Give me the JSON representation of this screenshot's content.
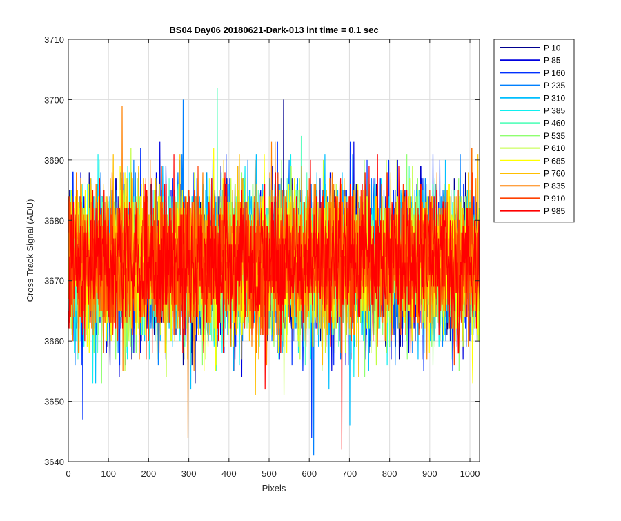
{
  "chart_data": {
    "type": "line",
    "title": "BS04 Day06 20180621-Dark-013 int time = 0.1 sec",
    "xlabel": "Pixels",
    "ylabel": "Cross Track Signal (ADU)",
    "xlim": [
      0,
      1024
    ],
    "ylim": [
      3640,
      3710
    ],
    "xticks": [
      0,
      100,
      200,
      300,
      400,
      500,
      600,
      700,
      800,
      900,
      1000
    ],
    "yticks": [
      3640,
      3650,
      3660,
      3670,
      3680,
      3690,
      3700,
      3710
    ],
    "grid": true,
    "legend_position": "outside-top-right",
    "n_points_per_series": 1024,
    "series_note": "Dark-frame noise traces; each series fluctuates around ~3673 ADU with visible spread roughly 3656-3691 and occasional spikes.",
    "series": [
      {
        "name": "P 10",
        "color": "#00008f",
        "mean": 3673,
        "std": 6.2
      },
      {
        "name": "P 85",
        "color": "#0000df",
        "mean": 3673,
        "std": 6.4
      },
      {
        "name": "P 160",
        "color": "#0030ff",
        "mean": 3673,
        "std": 6.3
      },
      {
        "name": "P 235",
        "color": "#0080ff",
        "mean": 3673,
        "std": 6.2
      },
      {
        "name": "P 310",
        "color": "#00bfff",
        "mean": 3673,
        "std": 6.1
      },
      {
        "name": "P 385",
        "color": "#10efef",
        "mean": 3673,
        "std": 6.2
      },
      {
        "name": "P 460",
        "color": "#60ffbf",
        "mean": 3673,
        "std": 6.0
      },
      {
        "name": "P 535",
        "color": "#8fff70",
        "mean": 3673,
        "std": 6.1
      },
      {
        "name": "P 610",
        "color": "#c0ff3f",
        "mean": 3673,
        "std": 6.0
      },
      {
        "name": "P 685",
        "color": "#ffff00",
        "mean": 3673,
        "std": 6.1
      },
      {
        "name": "P 760",
        "color": "#ffbf00",
        "mean": 3673,
        "std": 6.0
      },
      {
        "name": "P 835",
        "color": "#ff8000",
        "mean": 3673,
        "std": 6.0
      },
      {
        "name": "P 910",
        "color": "#ff4000",
        "mean": 3673,
        "std": 5.9
      },
      {
        "name": "P 985",
        "color": "#ff0000",
        "mean": 3673,
        "std": 5.8
      }
    ],
    "spikes": [
      {
        "series": "P 10",
        "x": 535,
        "y": 3700
      },
      {
        "series": "P 235",
        "x": 285,
        "y": 3700
      },
      {
        "series": "P 460",
        "x": 370,
        "y": 3702
      },
      {
        "series": "P 235",
        "x": 610,
        "y": 3641
      },
      {
        "series": "P 985",
        "x": 680,
        "y": 3642
      },
      {
        "series": "P 835",
        "x": 297,
        "y": 3644
      },
      {
        "series": "P 160",
        "x": 605,
        "y": 3644
      },
      {
        "series": "P 310",
        "x": 700,
        "y": 3646
      },
      {
        "series": "P 160",
        "x": 35,
        "y": 3647
      },
      {
        "series": "P 835",
        "x": 133,
        "y": 3699
      }
    ]
  }
}
